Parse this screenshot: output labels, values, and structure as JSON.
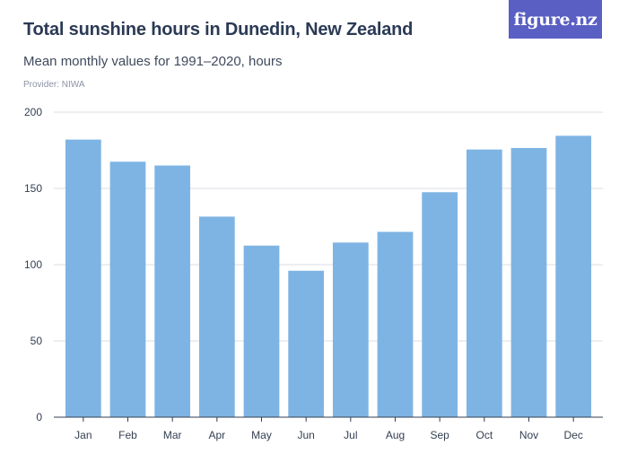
{
  "header": {
    "title": "Total sunshine hours in Dunedin, New Zealand",
    "subtitle": "Mean monthly values for 1991–2020, hours",
    "provider": "Provider: NIWA",
    "logo_text": "figure.nz"
  },
  "colors": {
    "bar": "#7eb4e3",
    "grid": "#d9dde3",
    "axis": "#333f52",
    "logo_bg": "#5a5fc3"
  },
  "chart_data": {
    "type": "bar",
    "title": "Total sunshine hours in Dunedin, New Zealand",
    "subtitle": "Mean monthly values for 1991–2020, hours",
    "xlabel": "",
    "ylabel": "",
    "categories": [
      "Jan",
      "Feb",
      "Mar",
      "Apr",
      "May",
      "Jun",
      "Jul",
      "Aug",
      "Sep",
      "Oct",
      "Nov",
      "Dec"
    ],
    "values": [
      182,
      167.5,
      165,
      131.5,
      112.5,
      96,
      114.5,
      121.5,
      147.5,
      175.5,
      176.5,
      184.5
    ],
    "ylim": [
      0,
      200
    ],
    "yticks": [
      0,
      50,
      100,
      150,
      200
    ],
    "grid": true,
    "legend": "none"
  }
}
